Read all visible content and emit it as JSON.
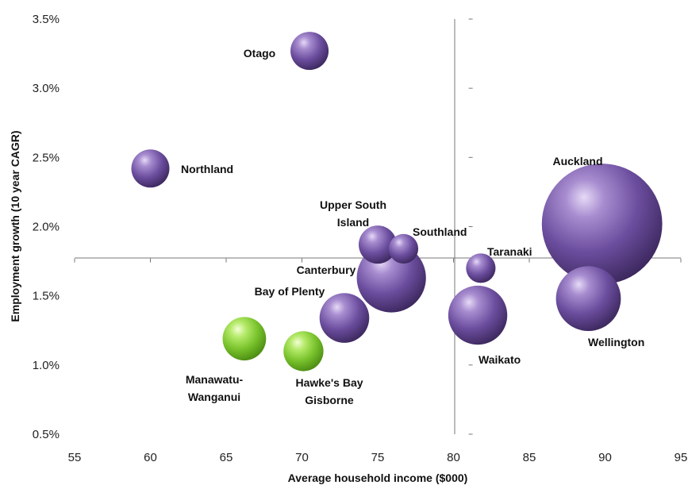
{
  "chart_data": {
    "type": "bubble",
    "xlabel": "Average household income ($000)",
    "ylabel": "Employment growth (10 year CAGR)",
    "xlim": [
      55,
      95
    ],
    "ylim": [
      0.5,
      3.5
    ],
    "x_ticks": [
      "55",
      "60",
      "65",
      "70",
      "75",
      "80",
      "85",
      "90",
      "95"
    ],
    "y_ticks": [
      "0.5%",
      "1.0%",
      "1.5%",
      "2.0%",
      "2.5%",
      "3.0%",
      "3.5%"
    ],
    "crosshair": {
      "x": 81,
      "y": 1.77
    },
    "grid": false,
    "colors": {
      "purple": "#6a4c9c",
      "green": "#7cc230"
    },
    "points": [
      {
        "label": [
          "Otago"
        ],
        "x": 70.5,
        "y": 3.27,
        "size": 1.0,
        "color": "purple"
      },
      {
        "label": [
          "Northland"
        ],
        "x": 60.0,
        "y": 2.42,
        "size": 1.0,
        "color": "purple"
      },
      {
        "label": [
          "Upper South",
          "Island"
        ],
        "x": 75.0,
        "y": 1.87,
        "size": 1.0,
        "color": "purple"
      },
      {
        "label": [
          "Southland"
        ],
        "x": 76.7,
        "y": 1.84,
        "size": 0.6,
        "color": "purple"
      },
      {
        "label": [
          "Canterbury"
        ],
        "x": 75.9,
        "y": 1.63,
        "size": 3.3,
        "color": "purple"
      },
      {
        "label": [
          "Taranaki"
        ],
        "x": 81.8,
        "y": 1.7,
        "size": 0.6,
        "color": "purple"
      },
      {
        "label": [
          "Auckland"
        ],
        "x": 89.8,
        "y": 2.02,
        "size": 10.0,
        "color": "purple"
      },
      {
        "label": [
          "Bay of Plenty"
        ],
        "x": 72.8,
        "y": 1.34,
        "size": 1.7,
        "color": "purple"
      },
      {
        "label": [
          "Waikato"
        ],
        "x": 81.6,
        "y": 1.36,
        "size": 2.4,
        "color": "purple"
      },
      {
        "label": [
          "Wellington"
        ],
        "x": 88.9,
        "y": 1.48,
        "size": 2.9,
        "color": "purple"
      },
      {
        "label": [
          "Manawatu-",
          "Wanganui"
        ],
        "x": 66.2,
        "y": 1.19,
        "size": 1.3,
        "color": "green"
      },
      {
        "label": [
          "Hawke's Bay",
          "Gisborne"
        ],
        "x": 70.1,
        "y": 1.1,
        "size": 1.1,
        "color": "green"
      }
    ]
  }
}
